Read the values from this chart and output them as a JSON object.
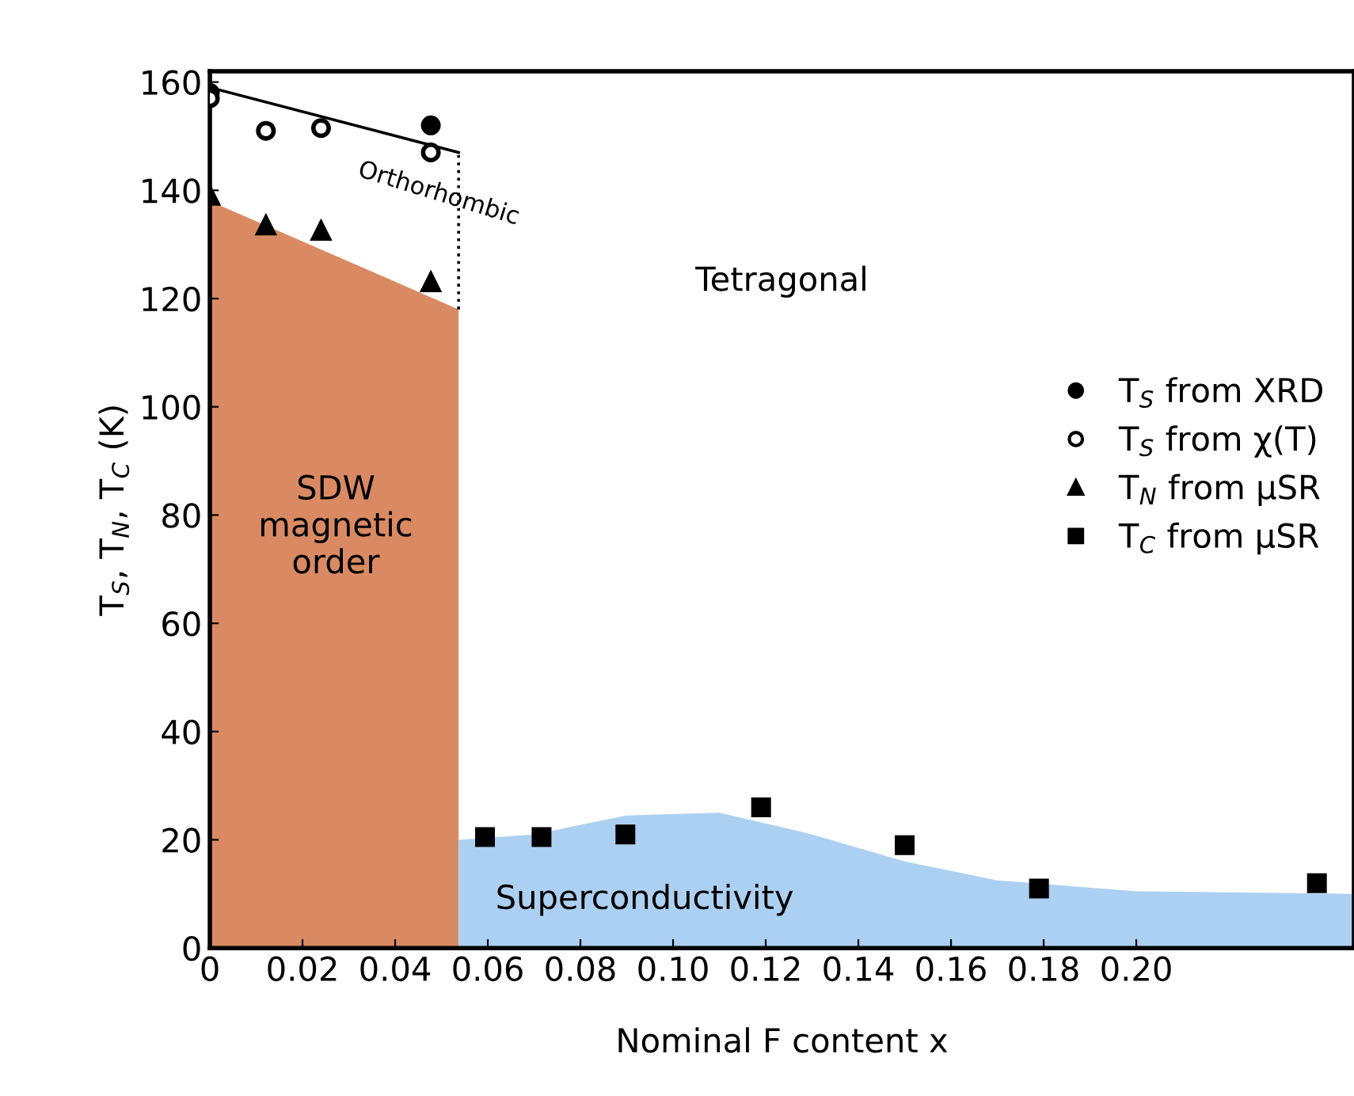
{
  "chart_data": {
    "type": "scatter",
    "xlabel": "Nominal F content x",
    "ylabel": "T$_{S}$, T$_{N}$, T$_{C}$ (K)",
    "xlim": [
      0,
      0.247
    ],
    "ylim": [
      0,
      162
    ],
    "xticks": [
      0,
      {
        "value": 0.02,
        "label": "0.02"
      },
      {
        "value": 0.04,
        "label": "0.04"
      },
      {
        "value": 0.06,
        "label": "0.06"
      },
      {
        "value": 0.08,
        "label": "0.08"
      },
      {
        "value": 0.1,
        "label": "0.10"
      },
      {
        "value": 0.12,
        "label": "0.12"
      },
      {
        "value": 0.14,
        "label": "0.14"
      },
      {
        "value": 0.16,
        "label": "0.16"
      },
      {
        "value": 0.18,
        "label": "0.18"
      },
      {
        "value": 0.2,
        "label": "0.20"
      }
    ],
    "yticks": [
      0,
      20,
      40,
      60,
      80,
      100,
      120,
      140,
      160
    ],
    "grid": false,
    "legend": "right",
    "series": [
      {
        "type": "area",
        "color": "#d98a62",
        "x": [
          0,
          0.0537
        ],
        "values": [
          138,
          118
        ]
      },
      {
        "type": "area",
        "color": "#acd0f2",
        "x": [
          0.0537,
          0.07,
          0.09,
          0.11,
          0.13,
          0.15,
          0.17,
          0.2,
          0.247
        ],
        "values": [
          20,
          21,
          24.5,
          25,
          21,
          16,
          12.5,
          10.5,
          10
        ]
      },
      {
        "type": "line",
        "color": "#000000",
        "x": [
          0,
          0.0537
        ],
        "values": [
          159,
          147
        ],
        "line_style": "solid",
        "marker": "none"
      },
      {
        "type": "line",
        "color": "#000000",
        "x": [
          0.0537,
          0.0537
        ],
        "values": [
          118,
          147
        ],
        "line_style": "dotted",
        "marker": "none"
      },
      {
        "name": "T$_{S}$ from XRD",
        "color": "#000000",
        "marker": "circle",
        "x": [
          0,
          0.0477
        ],
        "values": [
          158,
          152
        ]
      },
      {
        "name": "T$_{S}$ from χ(T)",
        "color": "#ffffff",
        "marker": "circle",
        "x": [
          0,
          0.0121,
          0.024,
          0.0477
        ],
        "values": [
          157,
          151,
          151.5,
          147
        ]
      },
      {
        "name": "T$_{N}$ from μSR",
        "color": "#000000",
        "marker": "triangle",
        "x": [
          0,
          0.0121,
          0.024,
          0.0477
        ],
        "values": [
          139,
          133.5,
          132.5,
          123
        ]
      },
      {
        "name": "T$_{C}$ from μSR",
        "color": "#000000",
        "marker": "square",
        "x": [
          0.0594,
          0.0716,
          0.0897,
          0.119,
          0.15,
          0.179,
          0.239
        ],
        "values": [
          20.5,
          20.5,
          21,
          26,
          19,
          11,
          12
        ]
      }
    ],
    "annotations": [
      "Orthorhombic",
      "Tetragonal",
      "SDW\nmagnetic\norder",
      "Superconductivity"
    ]
  }
}
